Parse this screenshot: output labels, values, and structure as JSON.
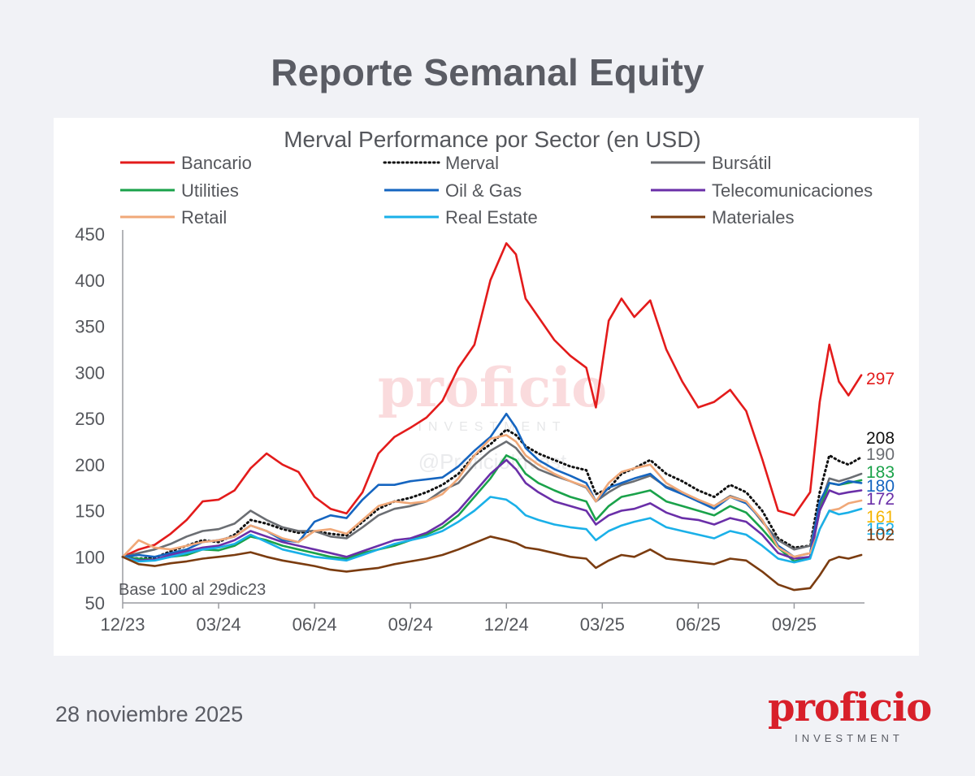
{
  "header": {
    "title": "Reporte Semanal Equity"
  },
  "footer": {
    "date": "28 noviembre 2025"
  },
  "brand": {
    "name": "proficio",
    "sub": "INVESTMENT"
  },
  "chart_data": {
    "type": "line",
    "title": "Merval Performance por Sector (en USD)",
    "note": "Base 100 al 29dic23",
    "watermark": {
      "name": "proficio",
      "sub": "INVESTMENT",
      "handle": "@ProficioInvest"
    },
    "ylim": [
      50,
      450
    ],
    "yticks": [
      50,
      100,
      150,
      200,
      250,
      300,
      350,
      400,
      450
    ],
    "xlim": [
      0,
      23.2
    ],
    "xticks": [
      {
        "pos": 0,
        "label": "12/23"
      },
      {
        "pos": 3,
        "label": "03/24"
      },
      {
        "pos": 6,
        "label": "06/24"
      },
      {
        "pos": 9,
        "label": "09/24"
      },
      {
        "pos": 12,
        "label": "12/24"
      },
      {
        "pos": 15,
        "label": "03/25"
      },
      {
        "pos": 18,
        "label": "06/25"
      },
      {
        "pos": 21,
        "label": "09/25"
      }
    ],
    "grid": false,
    "legend_position": "top",
    "series": [
      {
        "name": "Bancario",
        "color": "#e31b1b",
        "style": "solid",
        "end_label": "297",
        "end_label_color": "#e31b1b",
        "x": [
          0,
          0.5,
          1,
          1.5,
          2,
          2.5,
          3,
          3.5,
          4,
          4.5,
          5,
          5.5,
          6,
          6.5,
          7,
          7.5,
          8,
          8.5,
          9,
          9.5,
          10,
          10.5,
          11,
          11.5,
          12,
          12.3,
          12.6,
          13,
          13.5,
          14,
          14.5,
          14.8,
          15.2,
          15.6,
          16,
          16.5,
          17,
          17.5,
          18,
          18.5,
          19,
          19.5,
          20,
          20.5,
          21,
          21.5,
          21.8,
          22.1,
          22.4,
          22.7,
          23.1
        ],
        "values": [
          100,
          108,
          113,
          125,
          140,
          160,
          162,
          172,
          196,
          212,
          200,
          192,
          165,
          152,
          147,
          170,
          212,
          230,
          240,
          251,
          269,
          305,
          330,
          400,
          440,
          428,
          380,
          360,
          335,
          318,
          305,
          262,
          356,
          380,
          360,
          378,
          325,
          290,
          262,
          268,
          281,
          258,
          206,
          150,
          145,
          170,
          268,
          330,
          290,
          275,
          297
        ]
      },
      {
        "name": "Merval",
        "color": "#111111",
        "style": "dotted",
        "end_label": "208",
        "end_label_color": "#111111",
        "x": [
          0,
          0.5,
          1,
          1.5,
          2,
          2.5,
          3,
          3.5,
          4,
          4.5,
          5,
          5.5,
          6,
          6.5,
          7,
          7.5,
          8,
          8.5,
          9,
          9.5,
          10,
          10.5,
          11,
          11.5,
          12,
          12.3,
          12.6,
          13,
          13.5,
          14,
          14.5,
          14.8,
          15.2,
          15.6,
          16,
          16.5,
          17,
          17.5,
          18,
          18.5,
          19,
          19.5,
          20,
          20.5,
          21,
          21.5,
          21.8,
          22.1,
          22.4,
          22.7,
          23.1
        ],
        "values": [
          100,
          98,
          99,
          106,
          112,
          118,
          116,
          124,
          140,
          136,
          130,
          126,
          128,
          125,
          123,
          138,
          152,
          160,
          164,
          170,
          178,
          190,
          210,
          222,
          238,
          232,
          220,
          212,
          205,
          198,
          194,
          168,
          174,
          190,
          196,
          205,
          190,
          182,
          172,
          165,
          178,
          170,
          150,
          120,
          110,
          112,
          170,
          210,
          204,
          200,
          208
        ]
      },
      {
        "name": "Bursátil",
        "color": "#6b6e73",
        "style": "solid",
        "end_label": "190",
        "end_label_color": "#6b6e73",
        "x": [
          0,
          0.5,
          1,
          1.5,
          2,
          2.5,
          3,
          3.5,
          4,
          4.5,
          5,
          5.5,
          6,
          6.5,
          7,
          7.5,
          8,
          8.5,
          9,
          9.5,
          10,
          10.5,
          11,
          11.5,
          12,
          12.3,
          12.6,
          13,
          13.5,
          14,
          14.5,
          14.8,
          15.2,
          15.6,
          16,
          16.5,
          17,
          17.5,
          18,
          18.5,
          19,
          19.5,
          20,
          20.5,
          21,
          21.5,
          21.8,
          22.1,
          22.4,
          22.7,
          23.1
        ],
        "values": [
          100,
          104,
          108,
          114,
          122,
          128,
          130,
          136,
          150,
          140,
          132,
          128,
          128,
          122,
          120,
          132,
          145,
          152,
          155,
          160,
          172,
          180,
          200,
          215,
          225,
          218,
          205,
          195,
          188,
          182,
          175,
          160,
          170,
          178,
          182,
          188,
          176,
          170,
          160,
          155,
          166,
          160,
          138,
          118,
          108,
          112,
          155,
          185,
          182,
          185,
          190
        ]
      },
      {
        "name": "Utilities",
        "color": "#1aa24a",
        "style": "solid",
        "end_label": "183",
        "end_label_color": "#1aa24a",
        "x": [
          0,
          0.5,
          1,
          1.5,
          2,
          2.5,
          3,
          3.5,
          4,
          4.5,
          5,
          5.5,
          6,
          6.5,
          7,
          7.5,
          8,
          8.5,
          9,
          9.5,
          10,
          10.5,
          11,
          11.5,
          12,
          12.3,
          12.6,
          13,
          13.5,
          14,
          14.5,
          14.8,
          15.2,
          15.6,
          16,
          16.5,
          17,
          17.5,
          18,
          18.5,
          19,
          19.5,
          20,
          20.5,
          21,
          21.5,
          21.8,
          22.1,
          22.4,
          22.7,
          23.1
        ],
        "values": [
          100,
          98,
          97,
          100,
          102,
          108,
          107,
          112,
          122,
          118,
          112,
          108,
          104,
          100,
          98,
          104,
          108,
          112,
          118,
          124,
          132,
          145,
          165,
          185,
          210,
          205,
          190,
          180,
          172,
          165,
          160,
          140,
          155,
          165,
          168,
          172,
          160,
          155,
          150,
          145,
          155,
          148,
          130,
          110,
          95,
          100,
          150,
          180,
          178,
          180,
          183
        ]
      },
      {
        "name": "Oil & Gas",
        "color": "#1565c0",
        "style": "solid",
        "end_label": "180",
        "end_label_color": "#1565c0",
        "x": [
          0,
          0.5,
          1,
          1.5,
          2,
          2.5,
          3,
          3.5,
          4,
          4.5,
          5,
          5.5,
          6,
          6.5,
          7,
          7.5,
          8,
          8.5,
          9,
          9.5,
          10,
          10.5,
          11,
          11.5,
          12,
          12.3,
          12.6,
          13,
          13.5,
          14,
          14.5,
          14.8,
          15.2,
          15.6,
          16,
          16.5,
          17,
          17.5,
          18,
          18.5,
          19,
          19.5,
          20,
          20.5,
          21,
          21.5,
          21.8,
          22.1,
          22.4,
          22.7,
          23.1
        ],
        "values": [
          100,
          102,
          100,
          104,
          108,
          116,
          118,
          122,
          134,
          128,
          118,
          116,
          138,
          145,
          142,
          162,
          178,
          178,
          182,
          184,
          186,
          198,
          215,
          230,
          255,
          240,
          218,
          205,
          195,
          188,
          180,
          160,
          175,
          180,
          185,
          190,
          175,
          168,
          160,
          152,
          165,
          158,
          140,
          112,
          100,
          104,
          160,
          180,
          178,
          182,
          180
        ]
      },
      {
        "name": "Telecomunicaciones",
        "color": "#6a2fa8",
        "style": "solid",
        "end_label": "172",
        "end_label_color": "#6a2fa8",
        "x": [
          0,
          0.5,
          1,
          1.5,
          2,
          2.5,
          3,
          3.5,
          4,
          4.5,
          5,
          5.5,
          6,
          6.5,
          7,
          7.5,
          8,
          8.5,
          9,
          9.5,
          10,
          10.5,
          11,
          11.5,
          12,
          12.3,
          12.6,
          13,
          13.5,
          14,
          14.5,
          14.8,
          15.2,
          15.6,
          16,
          16.5,
          17,
          17.5,
          18,
          18.5,
          19,
          19.5,
          20,
          20.5,
          21,
          21.5,
          21.8,
          22.1,
          22.4,
          22.7,
          23.1
        ],
        "values": [
          100,
          96,
          97,
          102,
          106,
          110,
          112,
          118,
          128,
          122,
          116,
          112,
          108,
          104,
          100,
          106,
          112,
          118,
          120,
          126,
          136,
          150,
          170,
          190,
          205,
          195,
          180,
          170,
          160,
          155,
          150,
          135,
          145,
          150,
          152,
          158,
          148,
          142,
          140,
          135,
          142,
          138,
          124,
          104,
          98,
          100,
          150,
          172,
          168,
          170,
          172
        ]
      },
      {
        "name": "Retail",
        "color": "#f0a878",
        "style": "solid",
        "end_label": "161",
        "end_label_color": "#f5b400",
        "x": [
          0,
          0.5,
          1,
          1.5,
          2,
          2.5,
          3,
          3.5,
          4,
          4.5,
          5,
          5.5,
          6,
          6.5,
          7,
          7.5,
          8,
          8.5,
          9,
          9.5,
          10,
          10.5,
          11,
          11.5,
          12,
          12.3,
          12.6,
          13,
          13.5,
          14,
          14.5,
          14.8,
          15.2,
          15.6,
          16,
          16.5,
          17,
          17.5,
          18,
          18.5,
          19,
          19.5,
          20,
          20.5,
          21,
          21.5,
          21.8,
          22.1,
          22.4,
          22.7,
          23.1
        ],
        "values": [
          100,
          118,
          110,
          108,
          112,
          116,
          118,
          122,
          134,
          128,
          120,
          116,
          128,
          130,
          125,
          140,
          155,
          160,
          158,
          160,
          168,
          185,
          210,
          228,
          232,
          225,
          210,
          200,
          190,
          182,
          176,
          160,
          180,
          192,
          196,
          200,
          180,
          170,
          162,
          155,
          165,
          160,
          140,
          110,
          100,
          104,
          130,
          150,
          152,
          158,
          161
        ]
      },
      {
        "name": "Real Estate",
        "color": "#1ab0e8",
        "style": "solid",
        "end_label": "152",
        "end_label_color": "#1ab0e8",
        "x": [
          0,
          0.5,
          1,
          1.5,
          2,
          2.5,
          3,
          3.5,
          4,
          4.5,
          5,
          5.5,
          6,
          6.5,
          7,
          7.5,
          8,
          8.5,
          9,
          9.5,
          10,
          10.5,
          11,
          11.5,
          12,
          12.3,
          12.6,
          13,
          13.5,
          14,
          14.5,
          14.8,
          15.2,
          15.6,
          16,
          16.5,
          17,
          17.5,
          18,
          18.5,
          19,
          19.5,
          20,
          20.5,
          21,
          21.5,
          21.8,
          22.1,
          22.4,
          22.7,
          23.1
        ],
        "values": [
          100,
          95,
          96,
          100,
          104,
          108,
          110,
          114,
          124,
          116,
          108,
          104,
          100,
          98,
          96,
          102,
          108,
          114,
          118,
          122,
          128,
          138,
          150,
          165,
          162,
          155,
          145,
          140,
          135,
          132,
          130,
          118,
          128,
          134,
          138,
          142,
          132,
          128,
          124,
          120,
          128,
          124,
          112,
          98,
          94,
          98,
          130,
          150,
          146,
          148,
          152
        ]
      },
      {
        "name": "Materiales",
        "color": "#7b3c10",
        "style": "solid",
        "end_label": "102",
        "end_label_color": "#7b3c10",
        "x": [
          0,
          0.5,
          1,
          1.5,
          2,
          2.5,
          3,
          3.5,
          4,
          4.5,
          5,
          5.5,
          6,
          6.5,
          7,
          7.5,
          8,
          8.5,
          9,
          9.5,
          10,
          10.5,
          11,
          11.5,
          12,
          12.3,
          12.6,
          13,
          13.5,
          14,
          14.5,
          14.8,
          15.2,
          15.6,
          16,
          16.5,
          17,
          17.5,
          18,
          18.5,
          19,
          19.5,
          20,
          20.5,
          21,
          21.5,
          21.8,
          22.1,
          22.4,
          22.7,
          23.1
        ],
        "values": [
          100,
          92,
          90,
          93,
          95,
          98,
          100,
          102,
          105,
          100,
          96,
          93,
          90,
          86,
          84,
          86,
          88,
          92,
          95,
          98,
          102,
          108,
          115,
          122,
          118,
          115,
          110,
          108,
          104,
          100,
          98,
          88,
          96,
          102,
          100,
          108,
          98,
          96,
          94,
          92,
          98,
          96,
          84,
          70,
          64,
          66,
          80,
          96,
          100,
          98,
          102
        ]
      }
    ]
  }
}
